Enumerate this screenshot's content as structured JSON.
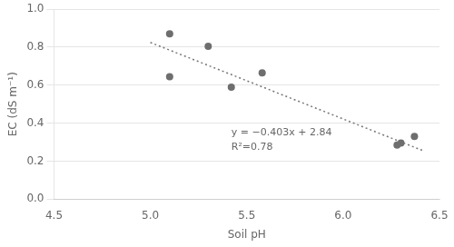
{
  "chart_data": {
    "type": "scatter",
    "xlabel": "Soil pH",
    "ylabel": "EC (dS m⁻¹)",
    "series": [
      {
        "type": "scatter",
        "color": "#6e6e6e",
        "marker": "circle",
        "x": [
          5.1,
          5.1,
          5.3,
          5.42,
          5.58,
          6.28,
          6.3,
          6.37
        ],
        "values": [
          0.87,
          0.645,
          0.805,
          0.59,
          0.665,
          0.285,
          0.295,
          0.33
        ]
      },
      {
        "type": "line",
        "color": "#777777",
        "line_style": "dotted",
        "x": [
          5.0,
          6.42
        ],
        "values": [
          0.825,
          0.25274
        ]
      }
    ],
    "annotations": [
      "y = −0.403x + 2.84",
      "R²=0.78"
    ],
    "xlim": [
      4.5,
      6.5
    ],
    "ylim": [
      0.0,
      1.0
    ],
    "xticks": [
      4.5,
      {
        "value": 5,
        "label": "5.0"
      },
      5.5,
      {
        "value": 6,
        "label": "6.0"
      },
      6.5
    ],
    "yticks": [
      {
        "value": 0,
        "label": "0.0"
      },
      0.2,
      0.4,
      0.6,
      0.8,
      {
        "value": 1,
        "label": "1.0"
      }
    ],
    "grid": "y"
  }
}
